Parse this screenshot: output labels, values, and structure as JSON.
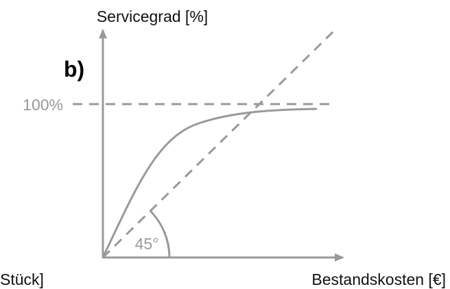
{
  "panel_label": "b)",
  "y_axis_label": "Servicegrad [%]",
  "x_axis_label": "Bestandskosten [€]",
  "x_axis_label_left": "Stück]",
  "reference_label": "100%",
  "angle_label": "45°"
}
